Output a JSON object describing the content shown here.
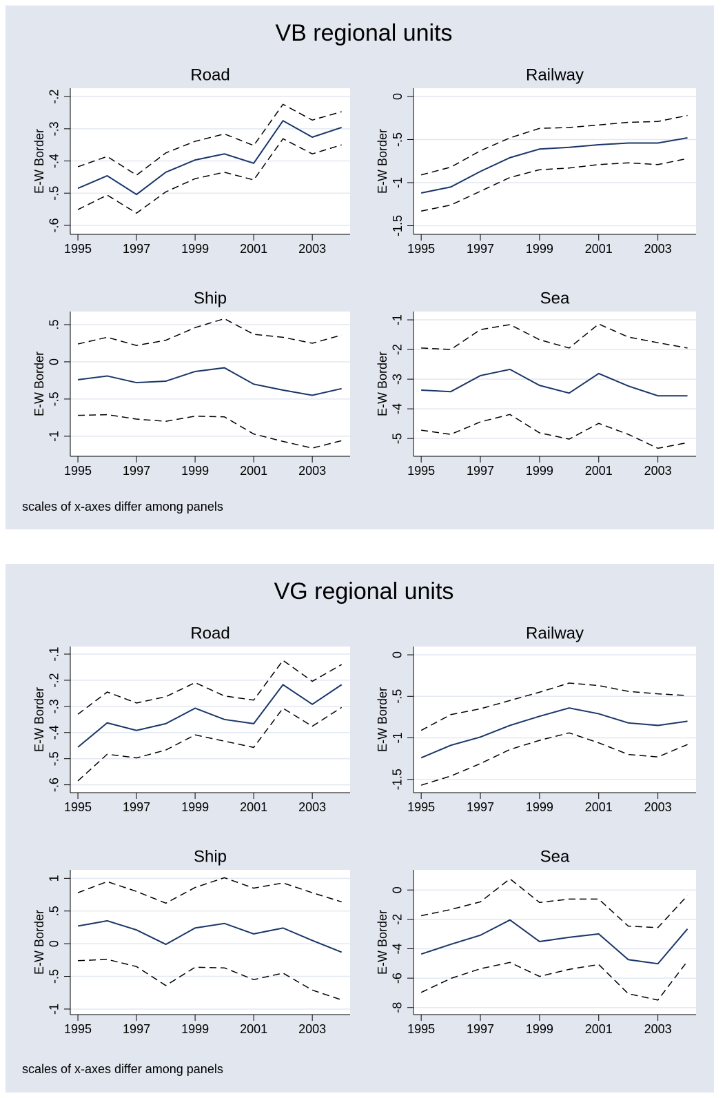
{
  "figures": [
    {
      "title": "VB regional units",
      "note": "scales of x-axes differ among panels"
    },
    {
      "title": "VG regional units",
      "note": "scales of x-axes differ among panels"
    }
  ],
  "chart_data": [
    {
      "type": "line",
      "title": "Road",
      "ylabel": "E-W Border",
      "grid": true,
      "x": [
        1995,
        1996,
        1997,
        1998,
        1999,
        2000,
        2001,
        2002,
        2003,
        2004
      ],
      "xlim": [
        1994.74,
        2004.29
      ],
      "xticks": [
        1995,
        1997,
        1999,
        2001,
        2003
      ],
      "ylim": [
        -0.628,
        -0.174
      ],
      "yticks": [
        {
          "value": -0.6,
          "label": "-.6"
        },
        {
          "value": -0.5,
          "label": "-.5"
        },
        {
          "value": -0.4,
          "label": "-.4"
        },
        {
          "value": -0.3,
          "label": "-.3"
        },
        {
          "value": -0.2,
          "label": "-.2"
        }
      ],
      "series": [
        {
          "color": "#1a3668",
          "dashed": false,
          "values": [
            -0.485,
            -0.446,
            -0.504,
            -0.435,
            -0.397,
            -0.378,
            -0.407,
            -0.275,
            -0.326,
            -0.296
          ]
        },
        {
          "color": "#000000",
          "dashed": true,
          "values": [
            -0.418,
            -0.386,
            -0.444,
            -0.375,
            -0.339,
            -0.316,
            -0.352,
            -0.224,
            -0.273,
            -0.247
          ]
        },
        {
          "color": "#000000",
          "dashed": true,
          "values": [
            -0.551,
            -0.506,
            -0.562,
            -0.496,
            -0.455,
            -0.435,
            -0.459,
            -0.331,
            -0.378,
            -0.35
          ]
        }
      ]
    },
    {
      "type": "line",
      "title": "Railway",
      "ylabel": "E-W Border",
      "grid": true,
      "x": [
        1995,
        1996,
        1997,
        1998,
        1999,
        2000,
        2001,
        2002,
        2003,
        2004
      ],
      "xlim": [
        1994.74,
        2004.29
      ],
      "xticks": [
        1995,
        1997,
        1999,
        2001,
        2003
      ],
      "ylim": [
        -1.6,
        0.096
      ],
      "yticks": [
        -1.5,
        -1,
        {
          "value": -0.5,
          "label": "-.5"
        },
        0
      ],
      "series": [
        {
          "color": "#1a3668",
          "dashed": false,
          "values": [
            -1.12,
            -1.05,
            -0.87,
            -0.71,
            -0.61,
            -0.59,
            -0.56,
            -0.54,
            -0.54,
            -0.48
          ]
        },
        {
          "color": "#000000",
          "dashed": true,
          "values": [
            -0.91,
            -0.82,
            -0.63,
            -0.48,
            -0.37,
            -0.36,
            -0.33,
            -0.3,
            -0.29,
            -0.22
          ]
        },
        {
          "color": "#000000",
          "dashed": true,
          "values": [
            -1.33,
            -1.26,
            -1.1,
            -0.94,
            -0.85,
            -0.83,
            -0.79,
            -0.77,
            -0.79,
            -0.72
          ]
        }
      ]
    },
    {
      "type": "line",
      "title": "Ship",
      "ylabel": "E-W Border",
      "grid": true,
      "x": [
        1995,
        1996,
        1997,
        1998,
        1999,
        2000,
        2001,
        2002,
        2003,
        2004
      ],
      "xlim": [
        1994.74,
        2004.29
      ],
      "xticks": [
        1995,
        1997,
        1999,
        2001,
        2003
      ],
      "ylim": [
        -1.27,
        0.676
      ],
      "yticks": [
        -1,
        {
          "value": -0.5,
          "label": "-.5"
        },
        0,
        {
          "value": 0.5,
          "label": ".5"
        }
      ],
      "series": [
        {
          "color": "#1a3668",
          "dashed": false,
          "values": [
            -0.24,
            -0.19,
            -0.28,
            -0.26,
            -0.13,
            -0.08,
            -0.3,
            -0.38,
            -0.45,
            -0.36
          ]
        },
        {
          "color": "#000000",
          "dashed": true,
          "values": [
            0.24,
            0.33,
            0.22,
            0.29,
            0.46,
            0.58,
            0.37,
            0.33,
            0.25,
            0.36
          ]
        },
        {
          "color": "#000000",
          "dashed": true,
          "values": [
            -0.72,
            -0.71,
            -0.77,
            -0.8,
            -0.73,
            -0.74,
            -0.97,
            -1.07,
            -1.16,
            -1.06
          ]
        }
      ]
    },
    {
      "type": "line",
      "title": "Sea",
      "ylabel": "E-W Border",
      "grid": true,
      "x": [
        1995,
        1996,
        1997,
        1998,
        1999,
        2000,
        2001,
        2002,
        2003,
        2004
      ],
      "xlim": [
        1994.74,
        2004.29
      ],
      "xticks": [
        1995,
        1997,
        1999,
        2001,
        2003
      ],
      "ylim": [
        -5.6,
        -0.72
      ],
      "yticks": [
        -5,
        -4,
        -3,
        -2,
        -1
      ],
      "series": [
        {
          "color": "#1a3668",
          "dashed": false,
          "values": [
            -3.37,
            -3.42,
            -2.88,
            -2.67,
            -3.21,
            -3.47,
            -2.81,
            -3.23,
            -3.56,
            -3.56
          ]
        },
        {
          "color": "#000000",
          "dashed": true,
          "values": [
            -1.95,
            -2.0,
            -1.33,
            -1.16,
            -1.67,
            -1.95,
            -1.14,
            -1.58,
            -1.77,
            -1.95
          ]
        },
        {
          "color": "#000000",
          "dashed": true,
          "values": [
            -4.72,
            -4.86,
            -4.44,
            -4.19,
            -4.81,
            -5.02,
            -4.49,
            -4.86,
            -5.33,
            -5.14
          ]
        }
      ]
    },
    {
      "type": "line",
      "title": "Road",
      "ylabel": "E-W Border",
      "grid": true,
      "x": [
        1995,
        1996,
        1997,
        1998,
        1999,
        2000,
        2001,
        2002,
        2003,
        2004
      ],
      "xlim": [
        1994.74,
        2004.29
      ],
      "xticks": [
        1995,
        1997,
        1999,
        2001,
        2003
      ],
      "ylim": [
        -0.63,
        -0.071
      ],
      "yticks": [
        {
          "value": -0.6,
          "label": "-.6"
        },
        {
          "value": -0.5,
          "label": "-.5"
        },
        {
          "value": -0.4,
          "label": "-.4"
        },
        {
          "value": -0.3,
          "label": "-.3"
        },
        {
          "value": -0.2,
          "label": "-.2"
        },
        {
          "value": -0.1,
          "label": "-.1"
        }
      ],
      "series": [
        {
          "color": "#1a3668",
          "dashed": false,
          "values": [
            -0.456,
            -0.363,
            -0.392,
            -0.366,
            -0.307,
            -0.35,
            -0.366,
            -0.217,
            -0.292,
            -0.217
          ]
        },
        {
          "color": "#000000",
          "dashed": true,
          "values": [
            -0.33,
            -0.245,
            -0.287,
            -0.263,
            -0.209,
            -0.26,
            -0.276,
            -0.124,
            -0.204,
            -0.14
          ]
        },
        {
          "color": "#000000",
          "dashed": true,
          "values": [
            -0.585,
            -0.483,
            -0.497,
            -0.467,
            -0.409,
            -0.433,
            -0.457,
            -0.307,
            -0.376,
            -0.304
          ]
        }
      ]
    },
    {
      "type": "line",
      "title": "Railway",
      "ylabel": "E-W Border",
      "grid": true,
      "x": [
        1995,
        1996,
        1997,
        1998,
        1999,
        2000,
        2001,
        2002,
        2003,
        2004
      ],
      "xlim": [
        1994.74,
        2004.29
      ],
      "xticks": [
        1995,
        1997,
        1999,
        2001,
        2003
      ],
      "ylim": [
        -1.66,
        0.1
      ],
      "yticks": [
        -1.5,
        -1,
        {
          "value": -0.5,
          "label": "-.5"
        },
        0
      ],
      "series": [
        {
          "color": "#1a3668",
          "dashed": false,
          "values": [
            -1.24,
            -1.09,
            -0.99,
            -0.85,
            -0.74,
            -0.64,
            -0.71,
            -0.82,
            -0.85,
            -0.8
          ]
        },
        {
          "color": "#000000",
          "dashed": true,
          "values": [
            -0.91,
            -0.72,
            -0.65,
            -0.55,
            -0.45,
            -0.34,
            -0.37,
            -0.44,
            -0.47,
            -0.49
          ]
        },
        {
          "color": "#000000",
          "dashed": true,
          "values": [
            -1.57,
            -1.46,
            -1.31,
            -1.14,
            -1.03,
            -0.94,
            -1.06,
            -1.2,
            -1.23,
            -1.08
          ]
        }
      ]
    },
    {
      "type": "line",
      "title": "Ship",
      "ylabel": "E-W Border",
      "grid": true,
      "x": [
        1995,
        1996,
        1997,
        1998,
        1999,
        2000,
        2001,
        2002,
        2003,
        2004
      ],
      "xlim": [
        1994.74,
        2004.29
      ],
      "xticks": [
        1995,
        1997,
        1999,
        2001,
        2003
      ],
      "ylim": [
        -1.085,
        1.13
      ],
      "yticks": [
        -1,
        {
          "value": -0.5,
          "label": "-.5"
        },
        0,
        {
          "value": 0.5,
          "label": ".5"
        },
        1
      ],
      "series": [
        {
          "color": "#1a3668",
          "dashed": false,
          "values": [
            0.27,
            0.35,
            0.21,
            -0.01,
            0.24,
            0.31,
            0.15,
            0.24,
            0.05,
            -0.13
          ]
        },
        {
          "color": "#000000",
          "dashed": true,
          "values": [
            0.78,
            0.95,
            0.8,
            0.62,
            0.86,
            1.01,
            0.85,
            0.93,
            0.78,
            0.64
          ]
        },
        {
          "color": "#000000",
          "dashed": true,
          "values": [
            -0.26,
            -0.24,
            -0.35,
            -0.64,
            -0.36,
            -0.37,
            -0.55,
            -0.45,
            -0.71,
            -0.86
          ]
        }
      ]
    },
    {
      "type": "line",
      "title": "Sea",
      "ylabel": "E-W Border",
      "grid": true,
      "x": [
        1995,
        1996,
        1997,
        1998,
        1999,
        2000,
        2001,
        2002,
        2003,
        2004
      ],
      "xlim": [
        1994.74,
        2004.29
      ],
      "xticks": [
        1995,
        1997,
        1999,
        2001,
        2003
      ],
      "ylim": [
        -8.48,
        1.37
      ],
      "yticks": [
        -8,
        -6,
        -4,
        -2,
        0
      ],
      "series": [
        {
          "color": "#1a3668",
          "dashed": false,
          "values": [
            -4.36,
            -3.7,
            -3.08,
            -2.04,
            -3.51,
            -3.22,
            -2.99,
            -4.74,
            -5.02,
            -2.65
          ]
        },
        {
          "color": "#000000",
          "dashed": true,
          "values": [
            -1.75,
            -1.33,
            -0.81,
            0.76,
            -0.85,
            -0.62,
            -0.62,
            -2.46,
            -2.56,
            -0.38
          ]
        },
        {
          "color": "#000000",
          "dashed": true,
          "values": [
            -6.97,
            -6.02,
            -5.36,
            -4.93,
            -5.88,
            -5.4,
            -5.07,
            -7.06,
            -7.49,
            -4.84
          ]
        }
      ]
    }
  ]
}
